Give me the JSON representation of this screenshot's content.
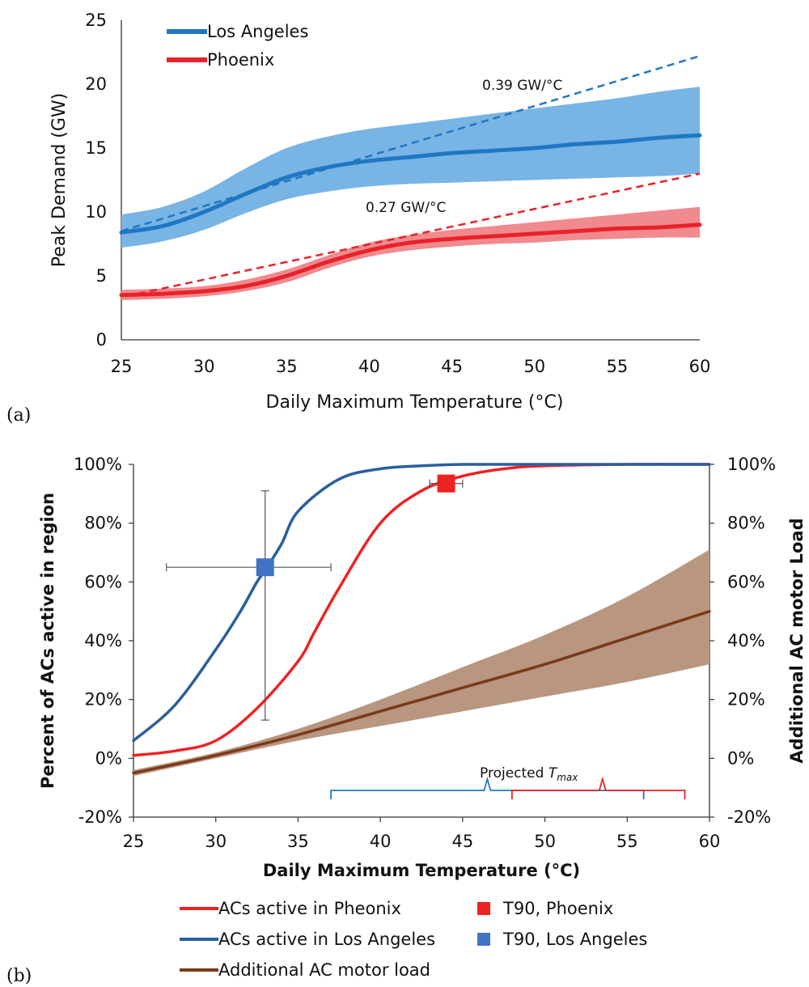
{
  "chart_data": [
    {
      "panel": "(a)",
      "type": "line",
      "xlabel": "Daily Maximum Temperature (°C)",
      "ylabel": "Peak Demand (GW)",
      "xlim": [
        25,
        60
      ],
      "ylim": [
        0,
        25
      ],
      "xticks": [
        "25",
        "30",
        "35",
        "40",
        "45",
        "50",
        "55",
        "60"
      ],
      "yticks": [
        "0",
        "5",
        "10",
        "15",
        "20",
        "25"
      ],
      "grid": false,
      "legend_position": "top-left",
      "series": [
        {
          "name": "Los Angeles",
          "color": "#1f77c4",
          "band_color": "#78b4e4",
          "x": [
            25,
            27.5,
            30,
            32.5,
            35,
            37.5,
            40,
            42.5,
            45,
            47.5,
            50,
            52.5,
            55,
            57.5,
            60
          ],
          "values": [
            8.4,
            8.9,
            10.0,
            11.4,
            12.7,
            13.5,
            14.0,
            14.3,
            14.6,
            14.8,
            15.0,
            15.3,
            15.5,
            15.8,
            16.0
          ],
          "upper": [
            9.8,
            10.4,
            11.6,
            13.4,
            15.0,
            15.9,
            16.5,
            16.9,
            17.3,
            17.7,
            18.1,
            18.5,
            18.9,
            19.4,
            19.8
          ],
          "lower": [
            7.2,
            7.7,
            8.6,
            9.9,
            11.0,
            11.6,
            12.0,
            12.2,
            12.3,
            12.4,
            12.5,
            12.6,
            12.7,
            12.8,
            13.0
          ]
        },
        {
          "name": "Phoenix",
          "color": "#e8222a",
          "band_color": "#f08a8e",
          "x": [
            25,
            27.5,
            30,
            32.5,
            35,
            37.5,
            40,
            42.5,
            45,
            47.5,
            50,
            52.5,
            55,
            57.5,
            60
          ],
          "values": [
            3.5,
            3.6,
            3.8,
            4.2,
            5.0,
            6.1,
            7.0,
            7.6,
            7.9,
            8.1,
            8.3,
            8.5,
            8.7,
            8.8,
            9.0
          ],
          "upper": [
            3.9,
            4.0,
            4.2,
            4.7,
            5.5,
            6.6,
            7.6,
            8.2,
            8.6,
            8.9,
            9.2,
            9.5,
            9.8,
            10.1,
            10.4
          ],
          "lower": [
            3.1,
            3.2,
            3.4,
            3.8,
            4.5,
            5.6,
            6.5,
            7.0,
            7.3,
            7.5,
            7.6,
            7.8,
            7.9,
            8.0,
            8.0
          ]
        }
      ],
      "trend_lines": [
        {
          "label": "0.39 GW/°C",
          "color": "#1f77c4",
          "x": [
            25,
            60
          ],
          "y": [
            8.5,
            22.2
          ]
        },
        {
          "label": "0.27 GW/°C",
          "color": "#e8222a",
          "x": [
            26,
            60
          ],
          "y": [
            3.6,
            13.0
          ]
        }
      ]
    },
    {
      "panel": "(b)",
      "type": "line",
      "xlabel": "Daily Maximum Temperature (°C)",
      "ylabel": "Percent of ACs active in region",
      "y2label": "Additional AC motor Load",
      "xlim": [
        25,
        60
      ],
      "ylim": [
        -20,
        100
      ],
      "xticks": [
        "25",
        "30",
        "35",
        "40",
        "45",
        "50",
        "55",
        "60"
      ],
      "yticks": [
        "-20%",
        "0%",
        "20%",
        "40%",
        "60%",
        "80%",
        "100%"
      ],
      "y2ticks": [
        "-20%",
        "0%",
        "20%",
        "40%",
        "60%",
        "80%",
        "100%"
      ],
      "grid": false,
      "legend_position": "bottom",
      "series": [
        {
          "name": "ACs active in Pheonix",
          "color": "#ee2222",
          "x": [
            25,
            27.5,
            30,
            32.5,
            35,
            36,
            37.5,
            40,
            42.5,
            45,
            47.5,
            50,
            55,
            60
          ],
          "values": [
            1,
            2.5,
            6,
            17,
            33,
            43,
            58,
            80,
            91,
            96,
            98.5,
            99.5,
            100,
            100
          ]
        },
        {
          "name": "ACs active in Los Angeles",
          "color": "#2a5f9e",
          "x": [
            25,
            27.5,
            30,
            31.5,
            32.5,
            33,
            34,
            35,
            37.5,
            40,
            42.5,
            45,
            50,
            60
          ],
          "values": [
            6,
            18,
            37,
            50,
            60,
            64,
            73,
            84,
            95,
            98.5,
            99.5,
            100,
            100,
            100
          ]
        },
        {
          "name": "Additional AC motor load",
          "color": "#7a3a1a",
          "band_color": "#b8967f",
          "x": [
            25,
            30,
            35,
            40,
            45,
            50,
            55,
            60
          ],
          "values": [
            -5,
            1,
            8,
            16,
            24,
            32,
            41,
            50
          ],
          "upper": [
            -4,
            2,
            10,
            20,
            31,
            42,
            55,
            71
          ],
          "lower": [
            -6,
            0,
            6,
            11,
            16,
            21,
            26,
            32
          ]
        }
      ],
      "markers": [
        {
          "name": "T90, Phoenix",
          "color": "#ee2222",
          "x": 44,
          "y": 93.5,
          "x_err": [
            43,
            45
          ],
          "y_err": null
        },
        {
          "name": "T90, Los Angeles",
          "color": "#4472c4",
          "x": 33,
          "y": 65,
          "x_err": [
            27,
            37
          ],
          "y_err": [
            13,
            91
          ]
        }
      ],
      "annotation": "Projected",
      "annotation_sub": "max",
      "projected_brackets": [
        {
          "color": "#1f77c4",
          "from": 37,
          "to": 56,
          "peak": 46.5
        },
        {
          "color": "#ee2222",
          "from": 48,
          "to": 58.5,
          "peak": 53.5
        }
      ]
    }
  ],
  "labels": {
    "panel_a": "(a)",
    "panel_b": "(b)",
    "t_symbol": "T"
  }
}
